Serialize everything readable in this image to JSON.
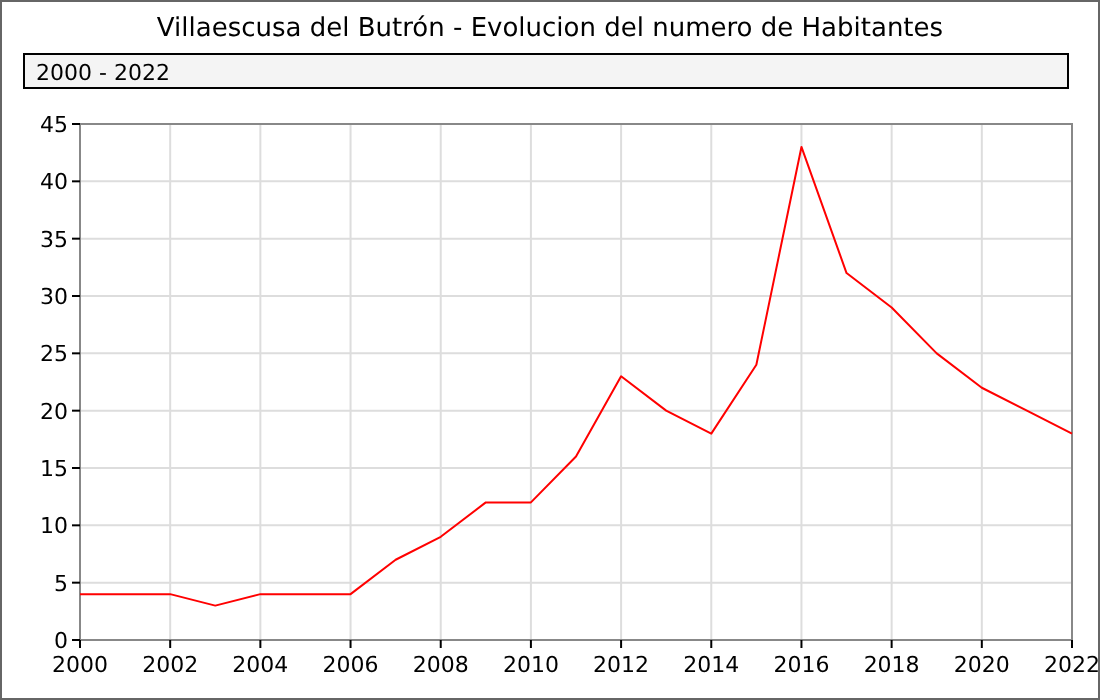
{
  "chart_data": {
    "type": "line",
    "title": "Villaescusa del Butrón - Evolucion del numero de Habitantes",
    "subtitle": "2000 - 2022",
    "x": [
      2000,
      2001,
      2002,
      2003,
      2004,
      2005,
      2006,
      2007,
      2008,
      2009,
      2010,
      2011,
      2012,
      2013,
      2014,
      2015,
      2016,
      2017,
      2018,
      2019,
      2020,
      2021,
      2022
    ],
    "series": [
      {
        "color": "#ff0000",
        "values": [
          4,
          4,
          4,
          3,
          4,
          4,
          4,
          7,
          9,
          12,
          12,
          16,
          23,
          20,
          18,
          24,
          43,
          32,
          29,
          25,
          22,
          20,
          18
        ]
      }
    ],
    "xlim": [
      2000,
      2022
    ],
    "xticks": [
      2000,
      2002,
      2004,
      2006,
      2008,
      2010,
      2012,
      2014,
      2016,
      2018,
      2020,
      2022
    ],
    "ylim": [
      0,
      45
    ],
    "yticks": [
      0,
      5,
      10,
      15,
      20,
      25,
      30,
      35,
      40,
      45
    ],
    "grid": true,
    "marker": "none",
    "line_style": "solid"
  }
}
